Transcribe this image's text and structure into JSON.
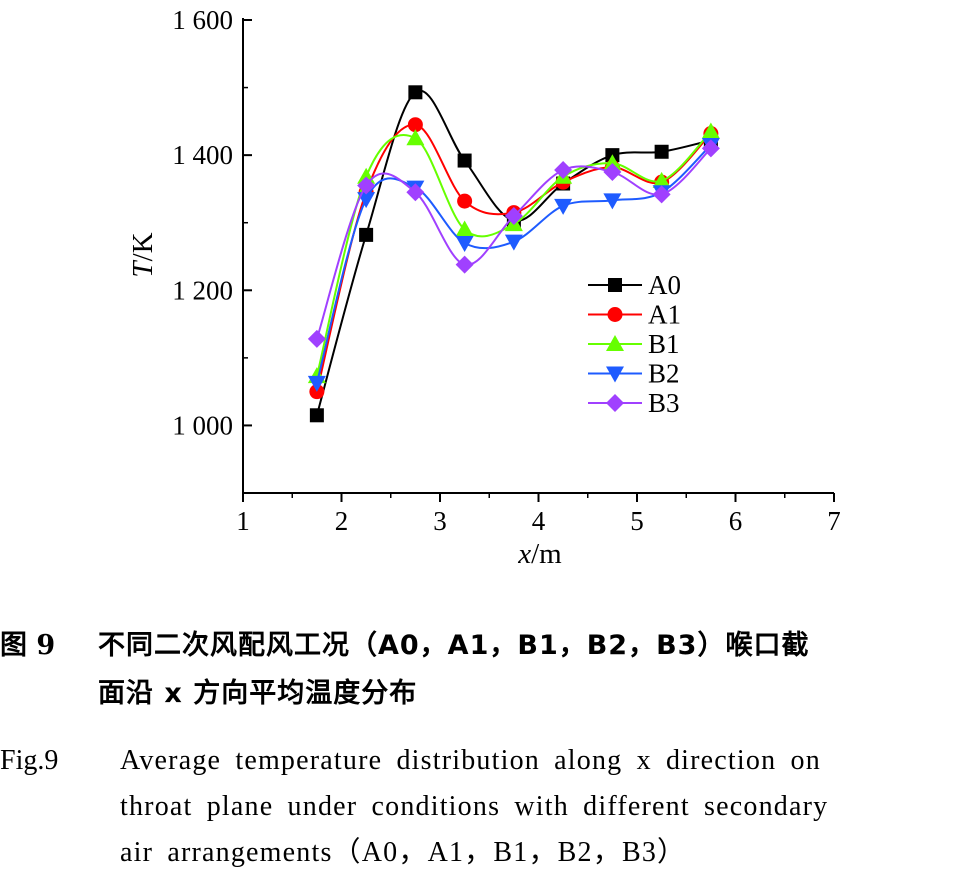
{
  "chart_data": {
    "type": "line",
    "xlabel_italic": "x",
    "xlabel_unit": "/m",
    "ylabel_italic": "T",
    "ylabel_unit": "/K",
    "xlim": [
      1,
      7
    ],
    "ylim": [
      900,
      1600
    ],
    "x_ticks": [
      1,
      2,
      3,
      4,
      5,
      6,
      7
    ],
    "x_tick_labels": [
      "1",
      "2",
      "3",
      "4",
      "5",
      "6",
      "7"
    ],
    "y_ticks": [
      1000,
      1200,
      1400,
      1600
    ],
    "y_tick_labels": [
      "1 000",
      "1 200",
      "1 400",
      "1 600"
    ],
    "x": [
      1.75,
      2.25,
      2.75,
      3.25,
      3.75,
      4.25,
      4.75,
      5.25,
      5.75
    ],
    "legend_position": "center-right",
    "series": [
      {
        "name": "A0",
        "color": "#000000",
        "marker": "square",
        "values": [
          1015,
          1282,
          1493,
          1392,
          1303,
          1358,
          1400,
          1405,
          1422
        ]
      },
      {
        "name": "A1",
        "color": "#ff0000",
        "marker": "circle",
        "values": [
          1050,
          1345,
          1445,
          1332,
          1315,
          1360,
          1382,
          1360,
          1432
        ]
      },
      {
        "name": "B1",
        "color": "#66ff00",
        "marker": "triangle-up",
        "values": [
          1073,
          1368,
          1425,
          1290,
          1298,
          1368,
          1388,
          1362,
          1435
        ]
      },
      {
        "name": "B2",
        "color": "#1e5bff",
        "marker": "triangle-down",
        "values": [
          1063,
          1335,
          1352,
          1270,
          1272,
          1325,
          1333,
          1345,
          1415
        ]
      },
      {
        "name": "B3",
        "color": "#a040ff",
        "marker": "diamond",
        "values": [
          1128,
          1355,
          1345,
          1238,
          1310,
          1378,
          1375,
          1342,
          1410
        ]
      }
    ]
  },
  "caption_cn": {
    "number": "图 9",
    "line1": "不同二次风配风工况（A0，A1，B1，B2，B3）喉口截",
    "line2": "面沿 x 方向平均温度分布"
  },
  "caption_en": {
    "number": "Fig.9",
    "line1": "Average temperature distribution along x direction on",
    "line2": "throat plane under conditions with different secondary",
    "line3": "air arrangements（A0，A1，B1，B2，B3）"
  }
}
